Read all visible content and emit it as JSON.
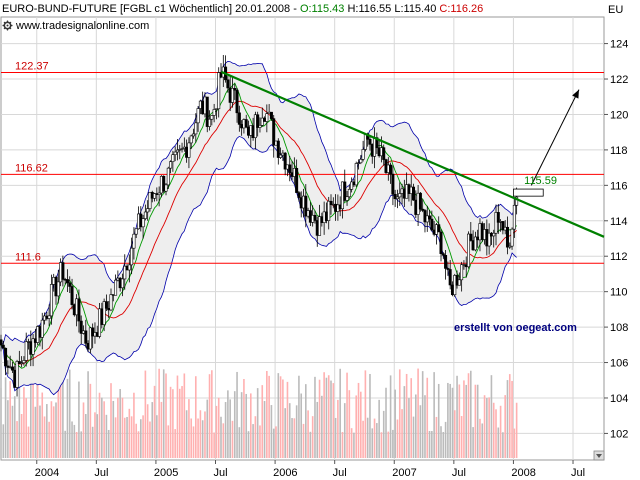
{
  "header": {
    "symbol_info": "EURO-BUND-FUTURE [FGBL c1  Wöchentlich] 20.01.2008",
    "open": "O:115.43",
    "high": "H:116.55",
    "low": "L:115.40",
    "close": "C:116.26",
    "corner_label": "EU",
    "source": "www.tradesignalonline.com"
  },
  "colors": {
    "background": "#ffffff",
    "plot_background": "#ffffff",
    "open_color": "#008000",
    "close_color": "#cc0000",
    "trendline": "#008000",
    "horizontal_lines": "#ff0000",
    "bands": "#0000aa",
    "band_fill": "#eeeeee",
    "volume_up": "#ffb0b0",
    "volume_down": "#bbbbbb",
    "text_blue": "#000080"
  },
  "chart_data": {
    "type": "candlestick",
    "timeframe": "weekly",
    "ylim": [
      100.5,
      125.5
    ],
    "y_ticks": [
      102,
      104,
      106,
      108,
      110,
      112,
      114,
      116,
      118,
      120,
      122,
      124
    ],
    "x_ticks": [
      "2004",
      "Jul",
      "2005",
      "Jul",
      "2006",
      "Jul",
      "2007",
      "Jul",
      "2008",
      "Jul"
    ],
    "x_tick_dates": [
      2004.0,
      2004.5,
      2005.0,
      2005.5,
      2006.0,
      2006.5,
      2007.0,
      2007.5,
      2008.0,
      2008.5
    ],
    "price_path": [
      {
        "t": 2003.7,
        "p": 107.0
      },
      {
        "t": 2003.82,
        "p": 105.2
      },
      {
        "t": 2003.9,
        "p": 106.6
      },
      {
        "t": 2004.03,
        "p": 108.0
      },
      {
        "t": 2004.15,
        "p": 110.2
      },
      {
        "t": 2004.22,
        "p": 111.2
      },
      {
        "t": 2004.35,
        "p": 108.5
      },
      {
        "t": 2004.42,
        "p": 107.2
      },
      {
        "t": 2004.55,
        "p": 108.6
      },
      {
        "t": 2004.7,
        "p": 110.8
      },
      {
        "t": 2004.85,
        "p": 113.6
      },
      {
        "t": 2005.0,
        "p": 115.8
      },
      {
        "t": 2005.1,
        "p": 116.5
      },
      {
        "t": 2005.25,
        "p": 118.2
      },
      {
        "t": 2005.38,
        "p": 120.5
      },
      {
        "t": 2005.47,
        "p": 119.8
      },
      {
        "t": 2005.55,
        "p": 122.3
      },
      {
        "t": 2005.7,
        "p": 120.2
      },
      {
        "t": 2005.78,
        "p": 118.5
      },
      {
        "t": 2005.9,
        "p": 120.6
      },
      {
        "t": 2006.0,
        "p": 118.6
      },
      {
        "t": 2006.12,
        "p": 117.2
      },
      {
        "t": 2006.25,
        "p": 115.0
      },
      {
        "t": 2006.37,
        "p": 113.8
      },
      {
        "t": 2006.5,
        "p": 114.8
      },
      {
        "t": 2006.65,
        "p": 116.6
      },
      {
        "t": 2006.78,
        "p": 118.6
      },
      {
        "t": 2006.9,
        "p": 117.4
      },
      {
        "t": 2007.02,
        "p": 115.0
      },
      {
        "t": 2007.15,
        "p": 115.4
      },
      {
        "t": 2007.3,
        "p": 113.6
      },
      {
        "t": 2007.4,
        "p": 112.8
      },
      {
        "t": 2007.46,
        "p": 110.0
      },
      {
        "t": 2007.55,
        "p": 111.2
      },
      {
        "t": 2007.65,
        "p": 113.0
      },
      {
        "t": 2007.72,
        "p": 113.6
      },
      {
        "t": 2007.8,
        "p": 112.6
      },
      {
        "t": 2007.88,
        "p": 114.6
      },
      {
        "t": 2007.95,
        "p": 112.4
      },
      {
        "t": 2008.04,
        "p": 116.3
      }
    ],
    "levels": [
      {
        "label": "122.37",
        "value": 122.37
      },
      {
        "label": "116.62",
        "value": 116.62
      },
      {
        "label": "111.6",
        "value": 111.6
      }
    ],
    "trendline": {
      "t1": 2005.55,
      "p1": 122.4,
      "t2": 2009.0,
      "p2": 112.4
    },
    "trendline_label": "115.59",
    "arrow": {
      "from_t": 2008.15,
      "from_p": 116.0,
      "to_t": 2008.55,
      "to_p": 121.4
    },
    "annotation": "erstellt von oegeat.com"
  }
}
